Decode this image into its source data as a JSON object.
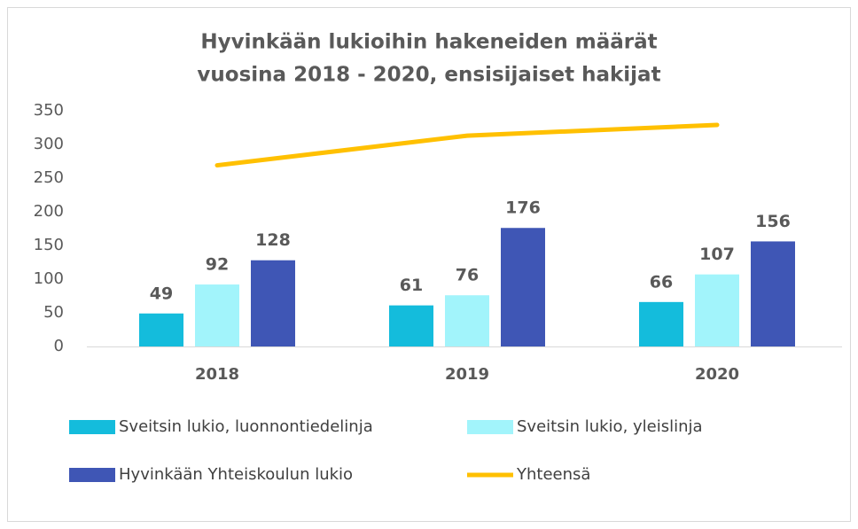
{
  "chart_data": {
    "type": "bar",
    "title": [
      "Hyvinkään lukioihin hakeneiden määrät",
      "vuosina 2018 - 2020, ensisijaiset hakijat"
    ],
    "categories": [
      "2018",
      "2019",
      "2020"
    ],
    "series": [
      {
        "name": "Sveitsin lukio, luonnontiedelinja",
        "color": "#14bcdc",
        "values": [
          49,
          61,
          66
        ]
      },
      {
        "name": "Sveitsin lukio, yleislinja",
        "color": "#a2f4fb",
        "values": [
          92,
          76,
          107
        ]
      },
      {
        "name": "Hyvinkään Yhteiskoulun lukio",
        "color": "#3f56b5",
        "values": [
          128,
          176,
          156
        ]
      },
      {
        "name": "Yhteensä",
        "color": "#ffc000",
        "type": "line",
        "values": [
          269,
          313,
          329
        ]
      }
    ],
    "ylim": [
      0,
      350
    ],
    "yticks": [
      0,
      50,
      100,
      150,
      200,
      250,
      300,
      350
    ]
  }
}
